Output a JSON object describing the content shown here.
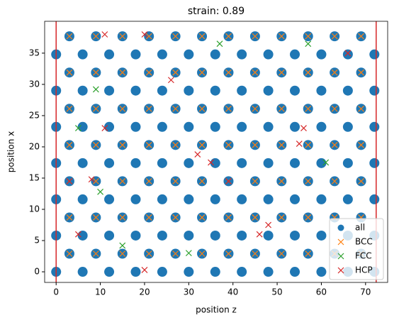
{
  "chart_data": {
    "type": "scatter",
    "title": "strain: 0.89",
    "x_label": "position z",
    "y_label": "position x",
    "xlim": [
      -2.6,
      75.0
    ],
    "ylim": [
      -1.7,
      40.1
    ],
    "xticks": [
      0,
      10,
      20,
      30,
      40,
      50,
      60,
      70
    ],
    "yticks": [
      0,
      5,
      10,
      15,
      20,
      25,
      30,
      35
    ],
    "vlines": [
      0,
      72.4
    ],
    "vline_color": "#d62728",
    "legend_position": "lower right",
    "series": [
      {
        "name": "all",
        "color": "#1f77b4",
        "marker": "o",
        "x": [
          0,
          6,
          12,
          18,
          24,
          30,
          36,
          42,
          48,
          54,
          60,
          66,
          72,
          3,
          9,
          15,
          21,
          27,
          33,
          39,
          45,
          51,
          57,
          63,
          69,
          0,
          6,
          12,
          18,
          24,
          30,
          36,
          42,
          48,
          54,
          60,
          66,
          72,
          3,
          9,
          15,
          21,
          27,
          33,
          39,
          45,
          51,
          57,
          63,
          69,
          0,
          6,
          12,
          18,
          24,
          30,
          36,
          42,
          48,
          54,
          60,
          66,
          72,
          3,
          9,
          15,
          21,
          27,
          33,
          39,
          45,
          51,
          57,
          63,
          69,
          0,
          6,
          12,
          18,
          24,
          30,
          36,
          42,
          48,
          54,
          60,
          66,
          72,
          3,
          9,
          15,
          21,
          27,
          33,
          39,
          45,
          51,
          57,
          63,
          69,
          0,
          6,
          12,
          18,
          24,
          30,
          36,
          42,
          48,
          54,
          60,
          66,
          72,
          3,
          9,
          15,
          21,
          27,
          33,
          39,
          45,
          51,
          57,
          63,
          69,
          0,
          6,
          12,
          18,
          24,
          30,
          36,
          42,
          48,
          54,
          60,
          66,
          72,
          3,
          9,
          15,
          21,
          27,
          33,
          39,
          45,
          51,
          57,
          63,
          69,
          0,
          6,
          12,
          18,
          24,
          30,
          36,
          42,
          48,
          54,
          60,
          66,
          72,
          3,
          9,
          15,
          21,
          27,
          33,
          39,
          45,
          51,
          57,
          63,
          69
        ],
        "y": [
          0,
          0,
          0,
          0,
          0,
          0,
          0,
          0,
          0,
          0,
          0,
          0,
          0,
          2.9,
          2.9,
          2.9,
          2.9,
          2.9,
          2.9,
          2.9,
          2.9,
          2.9,
          2.9,
          2.9,
          2.9,
          5.8,
          5.8,
          5.8,
          5.8,
          5.8,
          5.8,
          5.8,
          5.8,
          5.8,
          5.8,
          5.8,
          5.8,
          5.8,
          8.7,
          8.7,
          8.7,
          8.7,
          8.7,
          8.7,
          8.7,
          8.7,
          8.7,
          8.7,
          8.7,
          8.7,
          11.6,
          11.6,
          11.6,
          11.6,
          11.6,
          11.6,
          11.6,
          11.6,
          11.6,
          11.6,
          11.6,
          11.6,
          11.6,
          14.5,
          14.5,
          14.5,
          14.5,
          14.5,
          14.5,
          14.5,
          14.5,
          14.5,
          14.5,
          14.5,
          14.5,
          17.4,
          17.4,
          17.4,
          17.4,
          17.4,
          17.4,
          17.4,
          17.4,
          17.4,
          17.4,
          17.4,
          17.4,
          17.4,
          20.3,
          20.3,
          20.3,
          20.3,
          20.3,
          20.3,
          20.3,
          20.3,
          20.3,
          20.3,
          20.3,
          20.3,
          23.2,
          23.2,
          23.2,
          23.2,
          23.2,
          23.2,
          23.2,
          23.2,
          23.2,
          23.2,
          23.2,
          23.2,
          23.2,
          26.1,
          26.1,
          26.1,
          26.1,
          26.1,
          26.1,
          26.1,
          26.1,
          26.1,
          26.1,
          26.1,
          26.1,
          29,
          29,
          29,
          29,
          29,
          29,
          29,
          29,
          29,
          29,
          29,
          29,
          29,
          31.9,
          31.9,
          31.9,
          31.9,
          31.9,
          31.9,
          31.9,
          31.9,
          31.9,
          31.9,
          31.9,
          31.9,
          34.8,
          34.8,
          34.8,
          34.8,
          34.8,
          34.8,
          34.8,
          34.8,
          34.8,
          34.8,
          34.8,
          34.8,
          34.8,
          37.7,
          37.7,
          37.7,
          37.7,
          37.7,
          37.7,
          37.7,
          37.7,
          37.7,
          37.7,
          37.7,
          37.7
        ]
      },
      {
        "name": "BCC",
        "color": "#ff7f0e",
        "marker": "x",
        "x": [
          3,
          9,
          15,
          21,
          27,
          33,
          39,
          45,
          51,
          57,
          63,
          69,
          3,
          9,
          15,
          21,
          27,
          33,
          39,
          45,
          51,
          57,
          63,
          69,
          3,
          9,
          15,
          21,
          27,
          33,
          39,
          45,
          51,
          57,
          63,
          69,
          3,
          9,
          15,
          21,
          27,
          33,
          39,
          45,
          51,
          57,
          63,
          69,
          3,
          9,
          15,
          21,
          27,
          33,
          39,
          45,
          51,
          57,
          63,
          69,
          3,
          9,
          15,
          21,
          27,
          33,
          39,
          45,
          51,
          57,
          63,
          69,
          3,
          9,
          15,
          21,
          27,
          33,
          39,
          45,
          51,
          57,
          63,
          69
        ],
        "y": [
          2.9,
          2.9,
          2.9,
          2.9,
          2.9,
          2.9,
          2.9,
          2.9,
          2.9,
          2.9,
          2.9,
          2.9,
          8.7,
          8.7,
          8.7,
          8.7,
          8.7,
          8.7,
          8.7,
          8.7,
          8.7,
          8.7,
          8.7,
          8.7,
          14.5,
          14.5,
          14.5,
          14.5,
          14.5,
          14.5,
          14.5,
          14.5,
          14.5,
          14.5,
          14.5,
          14.5,
          20.3,
          20.3,
          20.3,
          20.3,
          20.3,
          20.3,
          20.3,
          20.3,
          20.3,
          20.3,
          20.3,
          20.3,
          26.1,
          26.1,
          26.1,
          26.1,
          26.1,
          26.1,
          26.1,
          26.1,
          26.1,
          26.1,
          26.1,
          26.1,
          31.9,
          31.9,
          31.9,
          31.9,
          31.9,
          31.9,
          31.9,
          31.9,
          31.9,
          31.9,
          31.9,
          31.9,
          37.7,
          37.7,
          37.7,
          37.7,
          37.7,
          37.7,
          37.7,
          37.7,
          37.7,
          37.7,
          37.7,
          37.7
        ]
      },
      {
        "name": "FCC",
        "color": "#2ca02c",
        "marker": "x",
        "x": [
          9,
          10,
          15,
          30,
          37,
          57,
          61,
          5
        ],
        "y": [
          29.2,
          12.8,
          4.2,
          3,
          36.5,
          36.5,
          17.5,
          23
        ]
      },
      {
        "name": "HCP",
        "color": "#d62728",
        "marker": "x",
        "x": [
          11,
          20,
          66,
          56,
          55,
          35,
          39,
          48,
          46,
          5,
          20,
          8,
          3,
          26,
          11,
          32
        ],
        "y": [
          38,
          38,
          35,
          23,
          20.5,
          17.5,
          14.5,
          7.5,
          6,
          6,
          0.3,
          14.8,
          14.5,
          30.7,
          23,
          18.8
        ]
      }
    ]
  }
}
